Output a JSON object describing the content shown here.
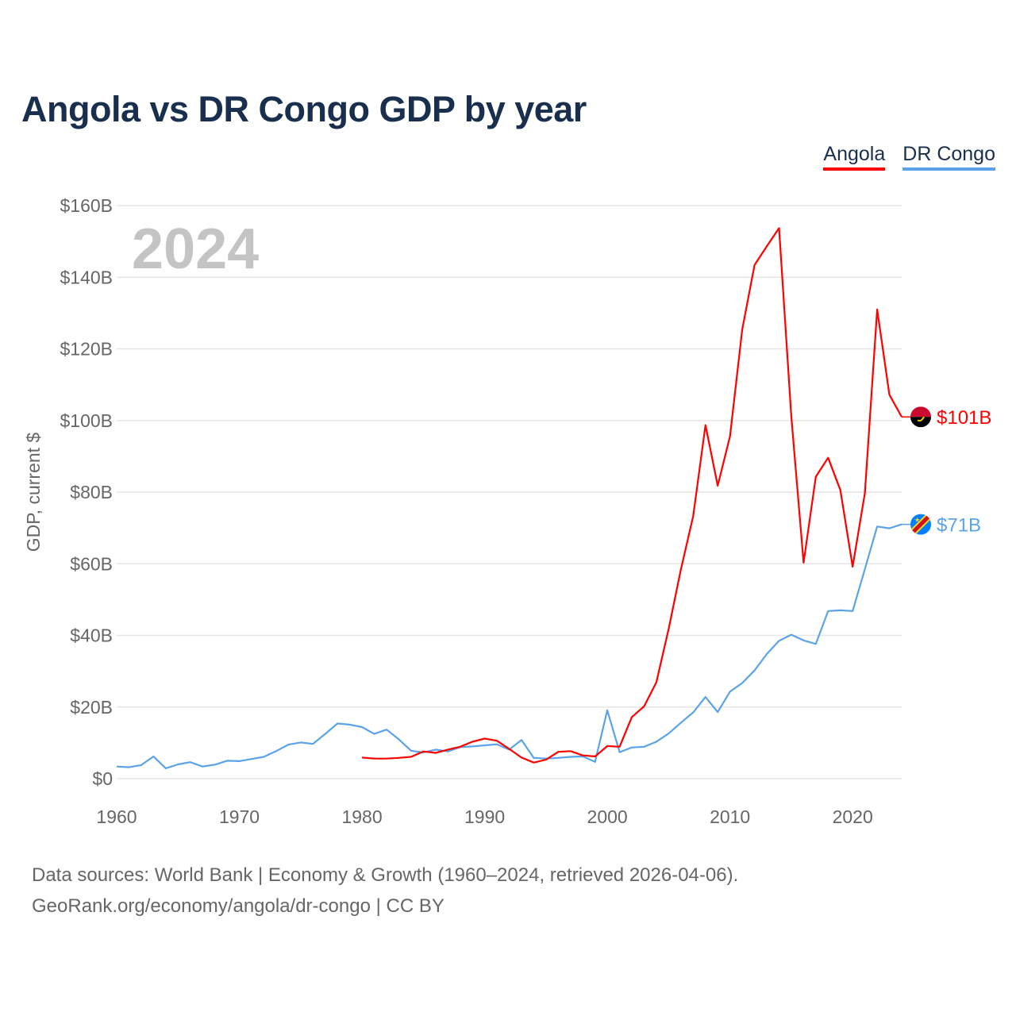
{
  "chart_data": {
    "type": "line",
    "title": "Angola vs DR Congo GDP by year",
    "ylabel": "GDP, current $",
    "xlabel": "",
    "year_watermark": "2024",
    "xlim": [
      1960,
      2024
    ],
    "ylim": [
      0,
      160
    ],
    "x_ticks": [
      1960,
      1970,
      1980,
      1990,
      2000,
      2010,
      2020
    ],
    "y_ticks": [
      0,
      20,
      40,
      60,
      80,
      100,
      120,
      140,
      160
    ],
    "y_tick_labels": [
      "$0",
      "$20B",
      "$40B",
      "$60B",
      "$80B",
      "$100B",
      "$120B",
      "$140B",
      "$160B"
    ],
    "grid": true,
    "legend_position": "top-right",
    "series": [
      {
        "name": "Angola",
        "color": "#ff0000",
        "start_year": 1980,
        "end_label": "$101B",
        "values": [
          5.9,
          5.6,
          5.6,
          5.8,
          6.1,
          7.6,
          7.2,
          8.1,
          8.9,
          10.3,
          11.2,
          10.6,
          8.3,
          5.9,
          4.5,
          5.3,
          7.5,
          7.7,
          6.5,
          6.2,
          9.1,
          8.9,
          17.2,
          20.2,
          26.9,
          41.8,
          58.4,
          73.3,
          98.7,
          81.8,
          95.6,
          125.4,
          143.4,
          148.6,
          153.7,
          101.2,
          60.3,
          84.3,
          89.6,
          80.6,
          59.2,
          79.7,
          131.0,
          107.2,
          101.0
        ]
      },
      {
        "name": "DR Congo",
        "color": "#5ba3e8",
        "start_year": 1960,
        "end_label": "$71B",
        "values": [
          3.4,
          3.2,
          3.8,
          6.2,
          2.9,
          4.0,
          4.6,
          3.4,
          3.9,
          5.0,
          4.9,
          5.5,
          6.1,
          7.7,
          9.5,
          10.1,
          9.7,
          12.5,
          15.4,
          15.1,
          14.4,
          12.5,
          13.7,
          11.0,
          7.8,
          7.3,
          8.1,
          7.6,
          8.8,
          9.0,
          9.3,
          9.6,
          8.1,
          10.8,
          5.8,
          5.6,
          5.8,
          6.1,
          6.2,
          4.7,
          19.1,
          7.4,
          8.7,
          8.9,
          10.3,
          12.6,
          15.6,
          18.5,
          22.8,
          18.6,
          24.3,
          26.7,
          30.2,
          34.8,
          38.5,
          40.2,
          38.6,
          37.6,
          46.8,
          47.0,
          46.8,
          58.5,
          70.4,
          69.9,
          71.0
        ]
      }
    ]
  },
  "footer": {
    "line1": "Data sources: World Bank | Economy & Growth (1960–2024, retrieved 2026-04-06).",
    "line2": "GeoRank.org/economy/angola/dr-congo | CC BY"
  }
}
